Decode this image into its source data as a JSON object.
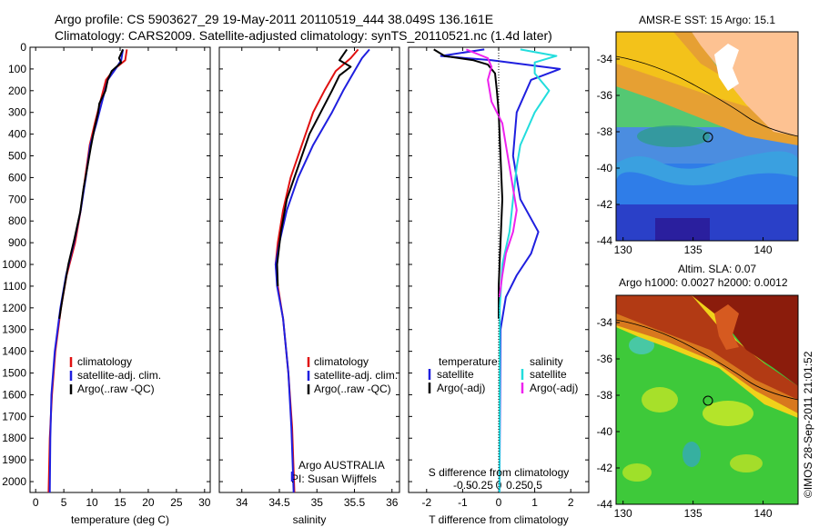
{
  "header": {
    "title": "Argo profile: CS 5903627_29 19-May-2011 20110519_444 38.049S 136.161E",
    "subtitle": "Climatology: CARS2009. Satellite-adjusted climatology: synTS_20110521.nc (1.4d later)"
  },
  "footer_stamp": "©IMOS 28-Sep-2011 21:01:52",
  "colors": {
    "climatology": "#e01010",
    "satellite": "#1f1fdf",
    "argo": "#000000",
    "salinity_satellite": "#22dddd",
    "salinity_argo": "#ee22ee"
  },
  "chart_data": [
    {
      "type": "line",
      "panel": "temperature",
      "xlabel": "temperature (deg C)",
      "ylabel": "",
      "xlim": [
        -1,
        31
      ],
      "ylim": [
        2050,
        0
      ],
      "x_ticks": [
        "0",
        "5",
        "10",
        "15",
        "20",
        "25",
        "30"
      ],
      "y_ticks": [
        "0",
        "100",
        "200",
        "300",
        "400",
        "500",
        "600",
        "700",
        "800",
        "900",
        "1000",
        "1100",
        "1200",
        "1300",
        "1400",
        "1500",
        "1600",
        "1700",
        "1800",
        "1900",
        "2000"
      ],
      "legend": [
        "climatology",
        "satellite-adj. clim.",
        "Argo(..raw -QC)"
      ],
      "series": [
        {
          "name": "climatology",
          "color": "#e01010",
          "points": [
            [
              16.2,
              10
            ],
            [
              15.9,
              60
            ],
            [
              14,
              100
            ],
            [
              12.5,
              150
            ],
            [
              11.5,
              250
            ],
            [
              10.5,
              350
            ],
            [
              9.6,
              450
            ],
            [
              8.8,
              600
            ],
            [
              8,
              750
            ],
            [
              7,
              900
            ],
            [
              5.5,
              1050
            ],
            [
              4.5,
              1200
            ],
            [
              3.5,
              1400
            ],
            [
              2.9,
              1600
            ],
            [
              2.5,
              1800
            ],
            [
              2.3,
              2050
            ]
          ]
        },
        {
          "name": "satellite-adj. clim.",
          "color": "#1f1fdf",
          "points": [
            [
              15.5,
              10
            ],
            [
              15.2,
              60
            ],
            [
              14.2,
              100
            ],
            [
              12.8,
              150
            ],
            [
              11.8,
              250
            ],
            [
              10.8,
              350
            ],
            [
              9.7,
              450
            ],
            [
              8.9,
              600
            ],
            [
              8,
              750
            ],
            [
              6.8,
              900
            ],
            [
              5.4,
              1050
            ],
            [
              4.4,
              1200
            ],
            [
              3.4,
              1400
            ],
            [
              2.8,
              1600
            ],
            [
              2.6,
              1800
            ],
            [
              2.5,
              2050
            ]
          ]
        },
        {
          "name": "Argo(..raw -QC)",
          "color": "#000000",
          "points": [
            [
              15.5,
              10
            ],
            [
              14.8,
              50
            ],
            [
              15.2,
              70
            ],
            [
              13.5,
              110
            ],
            [
              12.8,
              150
            ],
            [
              12.4,
              200
            ],
            [
              11.3,
              260
            ],
            [
              11.1,
              300
            ],
            [
              10.4,
              380
            ],
            [
              9.8,
              460
            ],
            [
              9.2,
              550
            ],
            [
              8.5,
              650
            ],
            [
              7.9,
              760
            ],
            [
              6.9,
              880
            ],
            [
              5.8,
              1000
            ],
            [
              4.8,
              1150
            ],
            [
              4.2,
              1250
            ]
          ]
        }
      ]
    },
    {
      "type": "line",
      "panel": "salinity",
      "xlabel": "salinity",
      "xlim": [
        33.7,
        36.1
      ],
      "ylim": [
        2050,
        0
      ],
      "x_ticks": [
        "34",
        "34.5",
        "35",
        "35.5",
        "36"
      ],
      "legend": [
        "climatology",
        "satellite-adj. clim.",
        "Argo(..raw -QC)"
      ],
      "annotation": [
        "Argo AUSTRALIA",
        "PI: Susan Wijffels"
      ],
      "series": [
        {
          "name": "climatology",
          "color": "#e01010",
          "points": [
            [
              35.55,
              10
            ],
            [
              35.45,
              50
            ],
            [
              35.25,
              110
            ],
            [
              35.1,
              200
            ],
            [
              34.95,
              300
            ],
            [
              34.8,
              450
            ],
            [
              34.65,
              600
            ],
            [
              34.55,
              750
            ],
            [
              34.48,
              900
            ],
            [
              34.45,
              1000
            ],
            [
              34.48,
              1100
            ],
            [
              34.55,
              1250
            ],
            [
              34.62,
              1500
            ],
            [
              34.67,
              1750
            ],
            [
              34.7,
              2050
            ]
          ]
        },
        {
          "name": "satellite-adj. clim.",
          "color": "#1f1fdf",
          "points": [
            [
              35.7,
              10
            ],
            [
              35.6,
              50
            ],
            [
              35.5,
              110
            ],
            [
              35.35,
              200
            ],
            [
              35.2,
              300
            ],
            [
              34.95,
              450
            ],
            [
              34.75,
              600
            ],
            [
              34.6,
              750
            ],
            [
              34.5,
              900
            ],
            [
              34.45,
              1000
            ],
            [
              34.47,
              1100
            ],
            [
              34.55,
              1250
            ],
            [
              34.62,
              1500
            ],
            [
              34.66,
              1750
            ],
            [
              34.69,
              2050
            ]
          ]
        },
        {
          "name": "Argo(..raw -QC)",
          "color": "#000000",
          "points": [
            [
              35.4,
              10
            ],
            [
              35.3,
              60
            ],
            [
              35.45,
              90
            ],
            [
              35.3,
              130
            ],
            [
              35.2,
              200
            ],
            [
              35.05,
              300
            ],
            [
              34.9,
              400
            ],
            [
              34.75,
              550
            ],
            [
              34.6,
              700
            ],
            [
              34.52,
              850
            ],
            [
              34.47,
              1000
            ],
            [
              34.48,
              1100
            ]
          ]
        }
      ]
    },
    {
      "type": "line",
      "panel": "differences",
      "xlabel": "T difference from climatology",
      "x2label": "S difference from climatology",
      "xlim": [
        -2.5,
        2.5
      ],
      "ylim": [
        2050,
        0
      ],
      "x_ticks": [
        "-2",
        "-1",
        "0",
        "1",
        "2"
      ],
      "x2_ticks": [
        "-0.5",
        "-0.25",
        "0",
        "0.25",
        "0.5"
      ],
      "legend_headings": [
        "temperature",
        "salinity"
      ],
      "legend": [
        "satellite",
        "Argo(-adj)",
        "satellite",
        "Argo(-adj)"
      ],
      "series": [
        {
          "name": "temperature satellite",
          "color": "#1f1fdf",
          "points": [
            [
              -0.4,
              10
            ],
            [
              -1.6,
              40
            ],
            [
              -0.2,
              60
            ],
            [
              1.7,
              100
            ],
            [
              0.9,
              150
            ],
            [
              0.5,
              300
            ],
            [
              0.4,
              500
            ],
            [
              0.6,
              700
            ],
            [
              1.1,
              850
            ],
            [
              0.9,
              950
            ],
            [
              0.5,
              1050
            ],
            [
              0.2,
              1150
            ],
            [
              0.05,
              1300
            ],
            [
              0.02,
              2050
            ]
          ]
        },
        {
          "name": "temperature Argo(-adj)",
          "color": "#000000",
          "points": [
            [
              -1.8,
              10
            ],
            [
              -1.5,
              40
            ],
            [
              -0.7,
              60
            ],
            [
              -0.3,
              80
            ],
            [
              -0.1,
              120
            ],
            [
              -0.05,
              200
            ],
            [
              0,
              300
            ],
            [
              0.05,
              500
            ],
            [
              0.1,
              700
            ],
            [
              0.05,
              900
            ],
            [
              0,
              1100
            ],
            [
              0,
              1250
            ]
          ]
        },
        {
          "name": "salinity satellite",
          "color": "#22dddd",
          "points": [
            [
              0.6,
              10
            ],
            [
              1.6,
              40
            ],
            [
              1.0,
              70
            ],
            [
              1.0,
              120
            ],
            [
              1.4,
              200
            ],
            [
              1.0,
              300
            ],
            [
              0.6,
              450
            ],
            [
              0.5,
              550
            ],
            [
              0.4,
              700
            ],
            [
              0.3,
              850
            ],
            [
              0.1,
              1000
            ],
            [
              0.03,
              1200
            ],
            [
              0.02,
              2050
            ]
          ]
        },
        {
          "name": "salinity Argo(-adj)",
          "color": "#ee22ee",
          "points": [
            [
              -0.9,
              10
            ],
            [
              -0.3,
              50
            ],
            [
              -0.2,
              90
            ],
            [
              -0.3,
              150
            ],
            [
              -0.2,
              250
            ],
            [
              0.1,
              350
            ],
            [
              0.2,
              450
            ],
            [
              0.3,
              550
            ],
            [
              0.4,
              650
            ],
            [
              0.5,
              750
            ],
            [
              0.4,
              850
            ],
            [
              0.2,
              950
            ],
            [
              0.1,
              1050
            ],
            [
              0.02,
              1150
            ]
          ]
        }
      ]
    },
    {
      "type": "heatmap",
      "panel": "sst-map",
      "title": "AMSR-E SST: 15 Argo: 15.1",
      "x_ticks": [
        "130",
        "135",
        "140"
      ],
      "y_ticks": [
        "-34",
        "-36",
        "-38",
        "-40",
        "-42",
        "-44"
      ],
      "xlim": [
        129.5,
        142.5
      ],
      "ylim": [
        -44,
        -32.5
      ],
      "argo_position": [
        136.161,
        -38.049
      ]
    },
    {
      "type": "heatmap",
      "panel": "sla-map",
      "title": [
        "Altim. SLA: 0.07",
        "Argo h1000: 0.0027 h2000: 0.0012"
      ],
      "x_ticks": [
        "130",
        "135",
        "140"
      ],
      "y_ticks": [
        "-34",
        "-36",
        "-38",
        "-40",
        "-42",
        "-44"
      ],
      "xlim": [
        129.5,
        142.5
      ],
      "ylim": [
        -44,
        -32.5
      ],
      "argo_position": [
        136.161,
        -38.049
      ]
    }
  ]
}
